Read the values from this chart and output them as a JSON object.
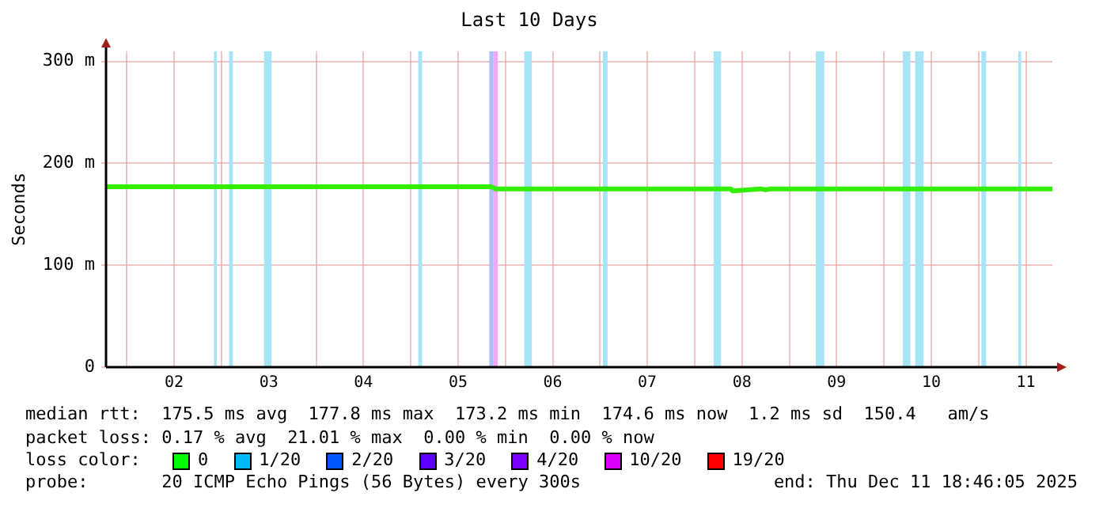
{
  "chart_data": {
    "type": "line",
    "title": "Last 10 Days",
    "ylabel": "Seconds",
    "xlim": [
      1.78,
      11.78
    ],
    "xticks": [
      {
        "value": 2,
        "label": null
      },
      {
        "value": 2.5,
        "label": "02"
      },
      {
        "value": 3,
        "label": null
      },
      {
        "value": 3.5,
        "label": "03"
      },
      {
        "value": 4,
        "label": null
      },
      {
        "value": 4.5,
        "label": "04"
      },
      {
        "value": 5,
        "label": null
      },
      {
        "value": 5.5,
        "label": "05"
      },
      {
        "value": 6,
        "label": null
      },
      {
        "value": 6.5,
        "label": "06"
      },
      {
        "value": 7,
        "label": null
      },
      {
        "value": 7.5,
        "label": "07"
      },
      {
        "value": 8,
        "label": null
      },
      {
        "value": 8.5,
        "label": "08"
      },
      {
        "value": 9,
        "label": null
      },
      {
        "value": 9.5,
        "label": "09"
      },
      {
        "value": 10,
        "label": null
      },
      {
        "value": 10.5,
        "label": "10"
      },
      {
        "value": 11,
        "label": null
      },
      {
        "value": 11.5,
        "label": "11"
      }
    ],
    "ylim": [
      0,
      310
    ],
    "yticks": [
      {
        "value": 0,
        "label": "0"
      },
      {
        "value": 100,
        "label": "100 m"
      },
      {
        "value": 200,
        "label": "200 m"
      },
      {
        "value": 300,
        "label": "300 m"
      }
    ],
    "grid": true,
    "legend": false,
    "marker": "none",
    "line_style": "solid",
    "series": [
      {
        "color": "#33ee00",
        "x": [
          1.78,
          2.5,
          3.0,
          3.5,
          4.5,
          5.5,
          5.85,
          5.9,
          6.5,
          7.5,
          8.38,
          8.4,
          8.7,
          8.75,
          8.8,
          9.5,
          10.5,
          11.78
        ],
        "values": [
          177,
          177,
          177,
          177,
          177,
          177,
          177,
          175,
          175,
          175,
          175,
          173,
          175,
          174,
          175,
          175,
          175,
          175
        ]
      }
    ],
    "bands": [
      {
        "axis": "x",
        "from": 2.92,
        "to": 2.95,
        "color": "#a8e4f8"
      },
      {
        "axis": "x",
        "from": 3.08,
        "to": 3.12,
        "color": "#a8e4f8"
      },
      {
        "axis": "x",
        "from": 3.45,
        "to": 3.53,
        "color": "#a8e4f8"
      },
      {
        "axis": "x",
        "from": 5.08,
        "to": 5.12,
        "color": "#a8e4f8"
      },
      {
        "axis": "x",
        "from": 5.83,
        "to": 5.87,
        "color": "#a8c0f8"
      },
      {
        "axis": "x",
        "from": 5.87,
        "to": 5.92,
        "color": "#f0a8f8"
      },
      {
        "axis": "x",
        "from": 6.2,
        "to": 6.28,
        "color": "#a8e4f8"
      },
      {
        "axis": "x",
        "from": 7.03,
        "to": 7.08,
        "color": "#a8e4f8"
      },
      {
        "axis": "x",
        "from": 8.2,
        "to": 8.28,
        "color": "#a8e4f8"
      },
      {
        "axis": "x",
        "from": 9.28,
        "to": 9.37,
        "color": "#a8e4f8"
      },
      {
        "axis": "x",
        "from": 10.2,
        "to": 10.28,
        "color": "#a8e4f8"
      },
      {
        "axis": "x",
        "from": 10.33,
        "to": 10.42,
        "color": "#a8e4f8"
      },
      {
        "axis": "x",
        "from": 11.03,
        "to": 11.08,
        "color": "#a8e4f8"
      },
      {
        "axis": "x",
        "from": 11.42,
        "to": 11.45,
        "color": "#a8e4f8"
      }
    ],
    "annotations": [
      "median rtt:  175.5 ms avg  177.8 ms max  173.2 ms min  174.6 ms now  1.2 ms sd  150.4   am/s",
      "packet loss: 0.17 % avg  21.01 % max  0.00 % min  0.00 % now",
      "loss color:",
      "0",
      "1/20",
      "2/20",
      "3/20",
      "4/20",
      "10/20",
      "19/20",
      "probe:       20 ICMP Echo Pings (56 Bytes) every 300s",
      "end: Thu Dec 11 18:46:05 2025"
    ]
  }
}
